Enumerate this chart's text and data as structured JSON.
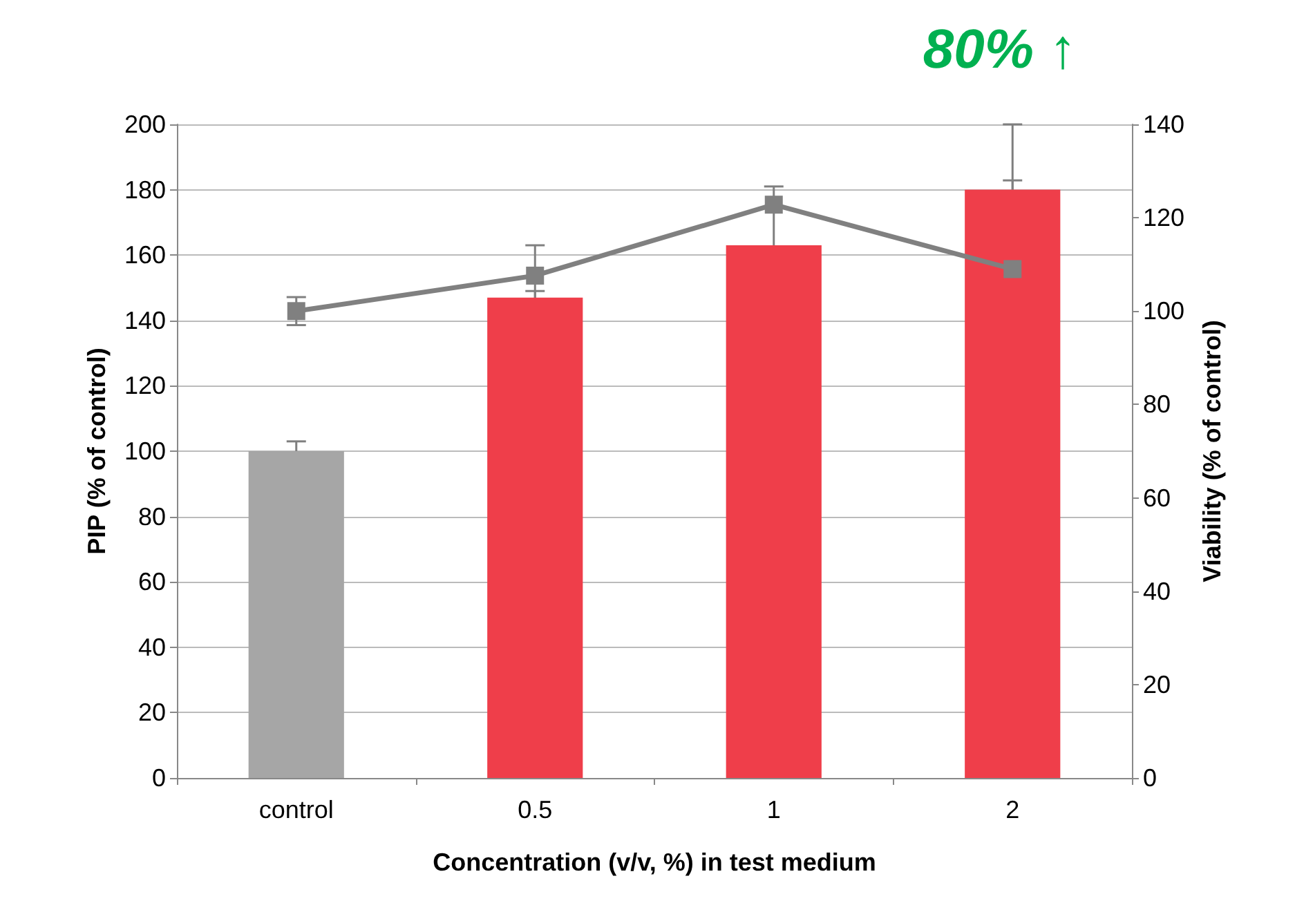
{
  "chart_data": {
    "type": "bar",
    "xlabel": "Concentration (v/v, %) in test medium",
    "ylabel": "PIP (% of control)",
    "y2label": "Viability (% of control)",
    "categories": [
      "control",
      "0.5",
      "1",
      "2"
    ],
    "series": [
      {
        "colors": [
          "#a6a6a6",
          "#ef3e4a",
          "#ef3e4a",
          "#ef3e4a"
        ],
        "values": [
          100,
          147,
          163,
          180
        ],
        "errors": [
          3,
          2,
          18,
          20
        ]
      },
      {
        "type": "line",
        "axis": "y2",
        "color": "#808080",
        "values": [
          100,
          107.6,
          122.8,
          109
        ],
        "errors": [
          3,
          6.5,
          null,
          19
        ]
      }
    ],
    "ylim": [
      0,
      200
    ],
    "yticks": [
      0,
      20,
      40,
      60,
      80,
      100,
      120,
      140,
      160,
      180,
      200
    ],
    "y2lim": [
      0,
      140
    ],
    "y2ticks": [
      0,
      20,
      40,
      60,
      80,
      100,
      120,
      140
    ],
    "grid": "y",
    "marker": "square",
    "line_style": "solid",
    "annotations": [
      "80% ↑"
    ]
  }
}
